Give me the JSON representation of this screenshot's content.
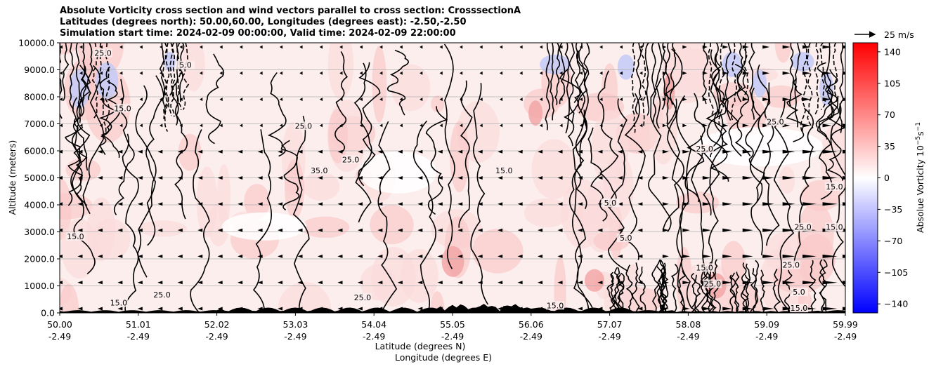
{
  "titles": {
    "line1": "Absolute Vorticity cross section and wind vectors parallel to cross section: CrosssectionA",
    "line2": "Latitudes (degrees north): 50.00,60.00, Longitudes (degrees east): -2.50,-2.50",
    "line3": "Simulation start time: 2024-02-09 00:00:00, Valid time: 2024-02-09 22:00:00"
  },
  "quiver_key": {
    "label": "25 m/s"
  },
  "chart_data": {
    "type": "heatmap",
    "ylabel": "Altitude (meters)",
    "xlabel_line1": "Latitude (degrees N)",
    "xlabel_line2": "Longitude (degrees E)",
    "ylim": [
      0,
      10000
    ],
    "xlim": [
      50.0,
      59.99
    ],
    "y_ticks": [
      "0.0",
      "1000.0",
      "2000.0",
      "3000.0",
      "4000.0",
      "5000.0",
      "6000.0",
      "7000.0",
      "8000.0",
      "9000.0",
      "10000.0"
    ],
    "x_ticks": [
      {
        "lat": "50.00",
        "lon": "-2.49"
      },
      {
        "lat": "51.01",
        "lon": "-2.49"
      },
      {
        "lat": "52.02",
        "lon": "-2.49"
      },
      {
        "lat": "53.03",
        "lon": "-2.49"
      },
      {
        "lat": "54.04",
        "lon": "-2.49"
      },
      {
        "lat": "55.05",
        "lon": "-2.49"
      },
      {
        "lat": "56.06",
        "lon": "-2.49"
      },
      {
        "lat": "57.07",
        "lon": "-2.49"
      },
      {
        "lat": "58.08",
        "lon": "-2.49"
      },
      {
        "lat": "59.09",
        "lon": "-2.49"
      },
      {
        "lat": "59.99",
        "lon": "-2.49"
      }
    ],
    "grid": "horizontal",
    "colorbar": {
      "label": "Absolue Vorticity 10",
      "label_exp": "−5",
      "label_unit": "s",
      "label_unit_exp": "−1",
      "range": [
        -150,
        150
      ],
      "ticks": [
        "140",
        "105",
        "70",
        "35",
        "0",
        "−35",
        "−70",
        "−105",
        "−140"
      ],
      "tick_values": [
        140,
        105,
        70,
        35,
        0,
        -35,
        -70,
        -105,
        -140
      ],
      "colors": [
        "#0000ff",
        "#ffffff",
        "#ff0000"
      ]
    },
    "contour_labels": [
      {
        "text": "25.0",
        "lat": 50.55,
        "alt": 9550
      },
      {
        "text": "5.0",
        "lat": 51.6,
        "alt": 9100
      },
      {
        "text": "15.0",
        "lat": 50.8,
        "alt": 7500
      },
      {
        "text": "25.0",
        "lat": 53.1,
        "alt": 6850
      },
      {
        "text": "25.0",
        "lat": 58.2,
        "alt": 6000
      },
      {
        "text": "35.0",
        "lat": 53.3,
        "alt": 5200
      },
      {
        "text": "25.0",
        "lat": 53.7,
        "alt": 5600
      },
      {
        "text": "15.0",
        "lat": 55.65,
        "alt": 5200
      },
      {
        "text": "15.0",
        "lat": 59.85,
        "alt": 4600
      },
      {
        "text": "15.0",
        "lat": 50.2,
        "alt": 2750
      },
      {
        "text": "5.0",
        "lat": 57.0,
        "alt": 4000
      },
      {
        "text": "5.0",
        "lat": 57.2,
        "alt": 2700
      },
      {
        "text": "25.0",
        "lat": 59.45,
        "alt": 3100
      },
      {
        "text": "15.0",
        "lat": 59.85,
        "alt": 3100
      },
      {
        "text": "15.0",
        "lat": 58.2,
        "alt": 1600
      },
      {
        "text": "25.0",
        "lat": 51.3,
        "alt": 600
      },
      {
        "text": "15.0",
        "lat": 50.75,
        "alt": 300
      },
      {
        "text": "25.0",
        "lat": 53.85,
        "alt": 500
      },
      {
        "text": "25.0",
        "lat": 59.3,
        "alt": 1700
      },
      {
        "text": "5.0",
        "lat": 59.4,
        "alt": 700
      },
      {
        "text": "15.0",
        "lat": 59.4,
        "alt": 100
      },
      {
        "text": "25.0",
        "lat": 58.3,
        "alt": 1000
      },
      {
        "text": "25.0",
        "lat": 59.1,
        "alt": 7000
      },
      {
        "text": "15.0",
        "lat": 56.3,
        "alt": 200
      }
    ]
  }
}
